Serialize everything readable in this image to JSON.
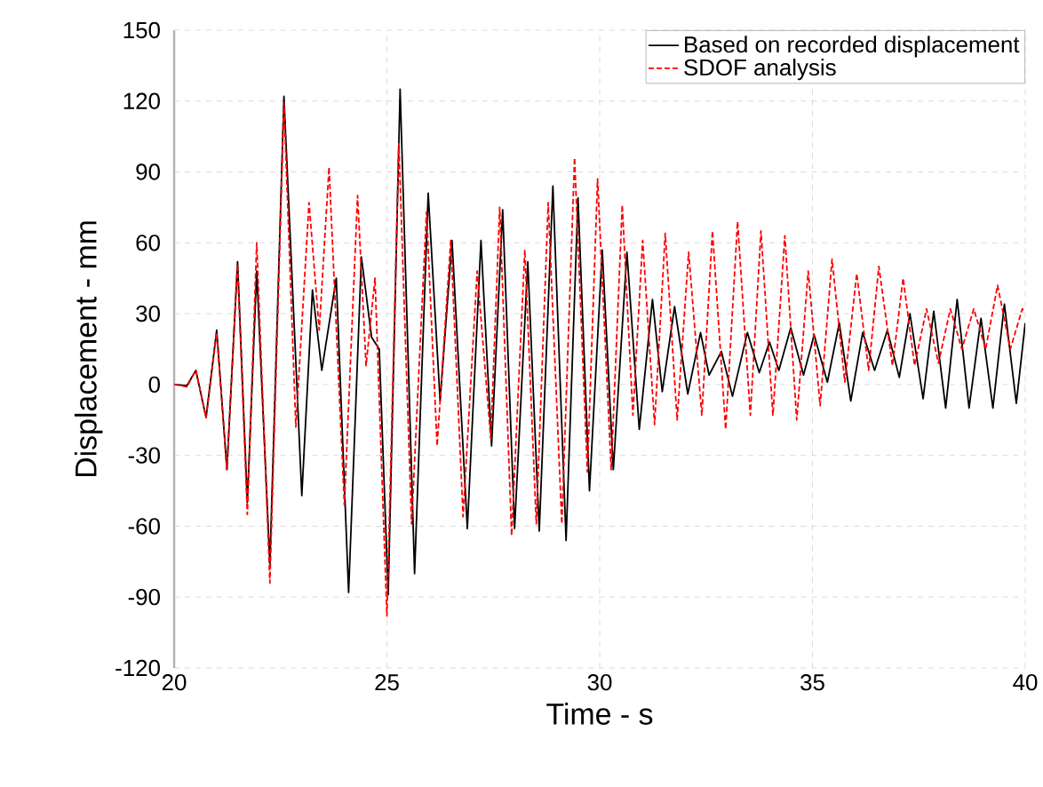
{
  "chart_data": {
    "type": "line",
    "xlabel": "Time - s",
    "ylabel": "Displacement -  mm",
    "xlim": [
      20,
      40
    ],
    "xticks": [
      20,
      25,
      30,
      35,
      40
    ],
    "ylim": [
      -120,
      150
    ],
    "yticks": [
      -120,
      -90,
      -60,
      -30,
      0,
      30,
      60,
      90,
      120,
      150
    ],
    "grid": true,
    "legend": "top right",
    "series": [
      {
        "name": "Based on recorded displacement",
        "color": "#000000",
        "line_style": "solid",
        "x": [
          20,
          20.3,
          20.51,
          20.75,
          21.0,
          21.24,
          21.49,
          21.72,
          21.94,
          22.25,
          22.58,
          23.0,
          23.25,
          23.47,
          23.81,
          24.1,
          24.4,
          24.64,
          24.82,
          25.03,
          25.31,
          25.65,
          25.97,
          26.25,
          26.53,
          26.89,
          27.21,
          27.46,
          27.72,
          28.0,
          28.31,
          28.58,
          28.9,
          29.21,
          29.49,
          29.76,
          30.06,
          30.32,
          30.64,
          30.93,
          31.24,
          31.47,
          31.76,
          32.07,
          32.37,
          32.57,
          32.86,
          33.12,
          33.47,
          33.75,
          33.99,
          34.21,
          34.49,
          34.79,
          35.04,
          35.35,
          35.63,
          35.9,
          36.18,
          36.46,
          36.76,
          37.04,
          37.29,
          37.6,
          37.85,
          38.13,
          38.4,
          38.68,
          38.96,
          39.24,
          39.51,
          39.79,
          40.0
        ],
        "values": [
          0,
          -0.5,
          6,
          -14,
          23,
          -36,
          52,
          -50,
          48,
          -76,
          122,
          -47,
          40,
          6,
          45,
          -88,
          54,
          20,
          15,
          -89,
          125,
          -80,
          81,
          -7,
          61,
          -61,
          61,
          -26,
          74,
          -61,
          52,
          -62,
          84,
          -66,
          79,
          -45,
          57,
          -36,
          56,
          -19,
          36,
          -3,
          33,
          -4,
          22,
          4,
          14,
          -5,
          22,
          5,
          18,
          6,
          24,
          4,
          21,
          1,
          26,
          -7,
          22,
          6,
          23,
          3,
          30,
          -6,
          31,
          -10,
          36,
          -10,
          28,
          -10,
          34,
          -8,
          26
        ]
      },
      {
        "name": "SDOF analysis",
        "color": "#ff0000",
        "line_style": "dashed",
        "x": [
          20,
          20.3,
          20.51,
          20.75,
          21.0,
          21.24,
          21.49,
          21.72,
          21.94,
          22.25,
          22.58,
          22.86,
          23.17,
          23.41,
          23.64,
          24.0,
          24.31,
          24.51,
          24.72,
          25.0,
          25.28,
          25.58,
          25.93,
          26.18,
          26.5,
          26.79,
          27.12,
          27.44,
          27.65,
          27.93,
          28.24,
          28.51,
          28.79,
          29.11,
          29.41,
          29.71,
          29.95,
          30.27,
          30.53,
          30.78,
          31.01,
          31.29,
          31.54,
          31.82,
          32.09,
          32.4,
          32.65,
          32.96,
          33.24,
          33.54,
          33.79,
          34.07,
          34.35,
          34.63,
          34.9,
          35.18,
          35.46,
          35.76,
          36.04,
          36.32,
          36.56,
          36.88,
          37.13,
          37.4,
          37.68,
          37.96,
          38.24,
          38.51,
          38.79,
          39.07,
          39.35,
          39.65,
          39.93,
          40.0
        ],
        "values": [
          0,
          -1,
          6,
          -14,
          22,
          -36,
          51,
          -55,
          60,
          -84,
          119,
          -18,
          77,
          23,
          92,
          -51,
          80,
          8,
          45,
          -98,
          102,
          -59,
          73,
          -26,
          61,
          -56,
          48,
          -23,
          75,
          -64,
          57,
          -59,
          77,
          -59,
          96,
          -37,
          87,
          -36,
          76,
          -13,
          61,
          -17,
          64,
          -15,
          56,
          -13,
          65,
          -19,
          69,
          -13,
          65,
          -13,
          63,
          -15,
          48,
          -9,
          53,
          1,
          47,
          6,
          50,
          8,
          45,
          8,
          32,
          9,
          32,
          15,
          32,
          15,
          42,
          15,
          32,
          31
        ]
      }
    ]
  }
}
